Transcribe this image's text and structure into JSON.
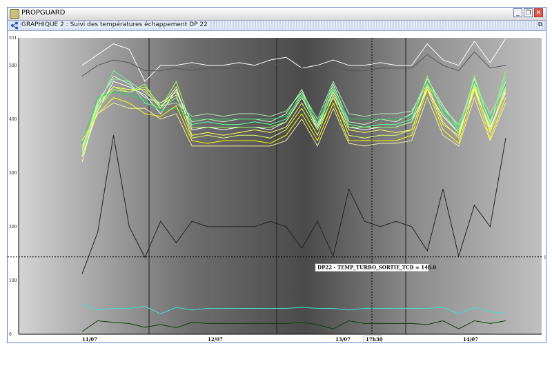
{
  "window": {
    "app_title": "PROPGUARD",
    "min_label": "_",
    "max_label": "❐",
    "close_label": "✕"
  },
  "panel": {
    "title": "GRAPHIQUE 2 : Suivi des températures échappement DP 22",
    "detach_label": "⧉"
  },
  "colors": {
    "bg_dark": "#404040",
    "bg_light": "#c8c8c8",
    "series": [
      "#ffff66",
      "#66ff99",
      "#ccffcc",
      "#ffffff",
      "#e6ff66",
      "#33cc66",
      "#ffff00",
      "#99ff66",
      "#b3e6b3",
      "#f0f0a0"
    ]
  },
  "chart_data": {
    "type": "line",
    "title": "",
    "xlabel": "",
    "ylabel": "",
    "ylim": [
      0,
      551
    ],
    "y_ticks": [
      "0",
      "100",
      "200",
      "300",
      "400",
      "500",
      "551"
    ],
    "x_ticks": [
      "11/07",
      "12/07",
      "13/07",
      "14/07"
    ],
    "cursor_label": "17h30",
    "hline_value": "143.9",
    "tooltip": "DP22 - TEMP_TURBO_SORTIE_TCB = 146.0",
    "series": [
      {
        "color": "#ffffff",
        "values": [
          500,
          520,
          540,
          530,
          470,
          500,
          500,
          505,
          500,
          500,
          505,
          500,
          510,
          515,
          495,
          500,
          510,
          500,
          500,
          505,
          500,
          500,
          540,
          510,
          500,
          545,
          505,
          550
        ]
      },
      {
        "color": "#555555",
        "values": [
          480,
          500,
          510,
          505,
          490,
          490,
          495,
          490,
          495,
          495,
          495,
          495,
          500,
          505,
          495,
          490,
          500,
          490,
          490,
          495,
          495,
          495,
          520,
          500,
          490,
          525,
          495,
          500
        ]
      },
      {
        "color": "#ffff66",
        "values": [
          320,
          430,
          460,
          455,
          455,
          420,
          460,
          370,
          375,
          370,
          375,
          380,
          375,
          385,
          430,
          380,
          440,
          380,
          375,
          380,
          375,
          380,
          460,
          390,
          370,
          460,
          380,
          460
        ]
      },
      {
        "color": "#66ff99",
        "values": [
          350,
          420,
          490,
          470,
          430,
          420,
          440,
          390,
          395,
          390,
          390,
          395,
          390,
          400,
          450,
          385,
          460,
          390,
          385,
          390,
          390,
          400,
          470,
          420,
          380,
          470,
          390,
          480
        ]
      },
      {
        "color": "#ccffcc",
        "values": [
          340,
          430,
          480,
          465,
          440,
          430,
          450,
          395,
          400,
          395,
          400,
          400,
          395,
          410,
          455,
          390,
          465,
          395,
          390,
          400,
          395,
          410,
          475,
          425,
          385,
          475,
          395,
          470
        ]
      },
      {
        "color": "#ffffff",
        "values": [
          330,
          415,
          470,
          460,
          445,
          410,
          455,
          380,
          385,
          380,
          385,
          385,
          380,
          395,
          440,
          385,
          450,
          385,
          380,
          385,
          385,
          395,
          455,
          405,
          375,
          455,
          385,
          450
        ]
      },
      {
        "color": "#e6ff66",
        "values": [
          345,
          425,
          460,
          450,
          460,
          425,
          445,
          365,
          370,
          365,
          370,
          370,
          365,
          380,
          420,
          370,
          445,
          370,
          365,
          370,
          370,
          380,
          465,
          395,
          365,
          465,
          375,
          455
        ]
      },
      {
        "color": "#33cc66",
        "values": [
          355,
          440,
          450,
          445,
          435,
          415,
          420,
          400,
          400,
          400,
          400,
          400,
          400,
          405,
          445,
          395,
          455,
          400,
          400,
          400,
          400,
          405,
          470,
          415,
          385,
          470,
          400,
          465
        ]
      },
      {
        "color": "#ffff00",
        "values": [
          360,
          410,
          440,
          430,
          410,
          405,
          425,
          360,
          355,
          360,
          360,
          360,
          355,
          370,
          410,
          360,
          430,
          360,
          360,
          360,
          360,
          370,
          455,
          380,
          355,
          455,
          365,
          440
        ]
      },
      {
        "color": "#99ff66",
        "values": [
          335,
          420,
          455,
          450,
          465,
          420,
          470,
          385,
          385,
          385,
          385,
          385,
          385,
          395,
          445,
          380,
          455,
          385,
          385,
          385,
          385,
          395,
          480,
          410,
          375,
          480,
          390,
          490
        ]
      },
      {
        "color": "#b3e6b3",
        "values": [
          340,
          435,
          475,
          470,
          450,
          425,
          430,
          405,
          410,
          405,
          410,
          410,
          405,
          415,
          450,
          400,
          470,
          410,
          405,
          410,
          410,
          415,
          465,
          420,
          390,
          465,
          410,
          460
        ]
      },
      {
        "color": "#f0f0a0",
        "values": [
          350,
          410,
          430,
          420,
          420,
          400,
          410,
          350,
          350,
          350,
          350,
          350,
          350,
          360,
          400,
          350,
          420,
          355,
          350,
          355,
          355,
          360,
          440,
          370,
          350,
          440,
          360,
          430
        ]
      },
      {
        "color": "#222222",
        "values": [
          112,
          190,
          370,
          200,
          143,
          210,
          170,
          210,
          200,
          200,
          200,
          200,
          210,
          200,
          160,
          210,
          145,
          270,
          210,
          200,
          210,
          200,
          155,
          270,
          145,
          240,
          200,
          365
        ]
      },
      {
        "color": "#40e0d0",
        "values": [
          55,
          45,
          48,
          48,
          52,
          38,
          50,
          45,
          48,
          48,
          48,
          48,
          48,
          48,
          50,
          48,
          48,
          45,
          48,
          48,
          48,
          48,
          48,
          50,
          38,
          50,
          42,
          38
        ]
      },
      {
        "color": "#0b3d0b",
        "values": [
          5,
          25,
          22,
          20,
          13,
          18,
          12,
          22,
          20,
          20,
          20,
          20,
          20,
          20,
          22,
          18,
          10,
          25,
          20,
          20,
          20,
          20,
          18,
          25,
          10,
          25,
          20,
          25
        ]
      }
    ]
  }
}
